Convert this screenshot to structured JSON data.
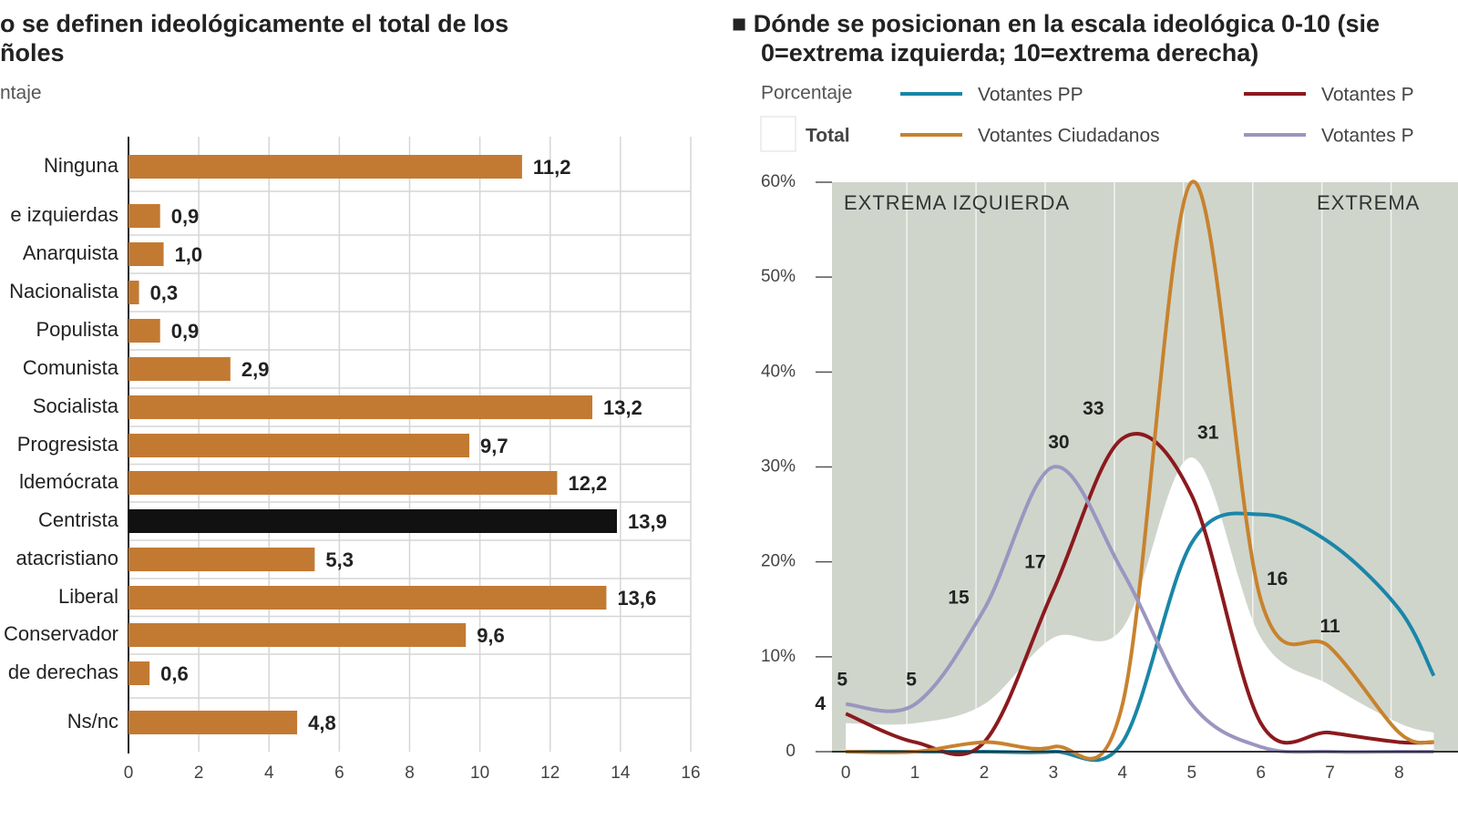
{
  "chart_data": [
    {
      "type": "bar",
      "orientation": "horizontal",
      "title": [
        "o se definen ideológicamente el total de los",
        "ñoles"
      ],
      "subtitle": "ntaje",
      "categories": [
        "Ninguna",
        "e izquierdas",
        "Anarquista",
        "Nacionalista",
        "Populista",
        "Comunista",
        "Socialista",
        "Progresista",
        "ldemócrata",
        "Centrista",
        "atacristiano",
        "Liberal",
        "Conservador",
        "de derechas",
        "Ns/nc"
      ],
      "values": [
        11.2,
        0.9,
        1.0,
        0.3,
        0.9,
        2.9,
        13.2,
        9.7,
        12.2,
        13.9,
        5.3,
        13.6,
        9.6,
        0.6,
        4.8
      ],
      "value_labels": [
        "11,2",
        "0,9",
        "1,0",
        "0,3",
        "0,9",
        "2,9",
        "13,2",
        "9,7",
        "12,2",
        "13,9",
        "5,3",
        "13,6",
        "9,6",
        "0,6",
        "4,8"
      ],
      "colors": [
        "#c27a33",
        "#c27a33",
        "#c27a33",
        "#c27a33",
        "#c27a33",
        "#c27a33",
        "#c27a33",
        "#c27a33",
        "#c27a33",
        "#111111",
        "#c27a33",
        "#c27a33",
        "#c27a33",
        "#c27a33",
        "#c27a33"
      ],
      "xlim": [
        0,
        16
      ],
      "xticks": [
        0,
        2,
        4,
        6,
        8,
        10,
        12,
        14,
        16
      ],
      "grid": true
    },
    {
      "type": "line",
      "title": [
        "■ Dónde se posicionan en la escala ideológica 0-10 (sie",
        "0=extrema izquierda; 10=extrema derecha)"
      ],
      "subtitle": "Porcentaje",
      "annotations": [
        "EXTREMA IZQUIERDA",
        "EXTREMA"
      ],
      "x": [
        0,
        1,
        2,
        3,
        4,
        5,
        6,
        7,
        8,
        8.5
      ],
      "series": [
        {
          "name": "Total",
          "color": "#ffffff",
          "style": "area",
          "values": [
            3,
            3,
            5,
            12,
            13,
            31,
            12,
            7,
            3,
            2
          ]
        },
        {
          "name": "Votantes PP",
          "color": "#1a86a8",
          "values": [
            0,
            0,
            0,
            0,
            1,
            22,
            25,
            22,
            15,
            8
          ]
        },
        {
          "name": "Votantes P",
          "color": "#8b1a1e",
          "values": [
            4,
            1,
            1,
            17,
            33,
            27,
            3,
            2,
            1,
            1
          ]
        },
        {
          "name": "Votantes Ciudadanos",
          "color": "#c8822e",
          "values": [
            0,
            0,
            1,
            0.5,
            5,
            60,
            16,
            11,
            2,
            1
          ]
        },
        {
          "name": "Votantes P",
          "color": "#9a96c0",
          "values": [
            5,
            5,
            15,
            30,
            19,
            5,
            0.5,
            0,
            0,
            0
          ]
        }
      ],
      "xlim": [
        -0.2,
        8.85
      ],
      "xticks": [
        0,
        1,
        2,
        3,
        4,
        5,
        6,
        7,
        8
      ],
      "ylim": [
        0,
        60
      ],
      "yticks": [
        0,
        {
          "value": 10,
          "label": "10%"
        },
        {
          "value": 20,
          "label": "20%"
        },
        {
          "value": 30,
          "label": "30%"
        },
        {
          "value": 40,
          "label": "40%"
        },
        {
          "value": 50,
          "label": "50%"
        },
        {
          "value": 60,
          "label": "60%"
        }
      ]
    }
  ]
}
